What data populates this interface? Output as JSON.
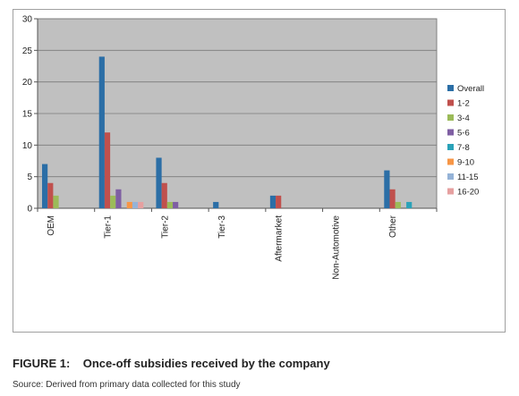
{
  "chart_data": {
    "type": "bar",
    "categories": [
      "OEM",
      "Tier-1",
      "Tier-2",
      "Tier-3",
      "Aftermarket",
      "Non-Automotive",
      "Other"
    ],
    "ylim": [
      0,
      30
    ],
    "yticks": [
      0,
      5,
      10,
      15,
      20,
      25,
      30
    ],
    "grid": true,
    "legend_position": "right",
    "series": [
      {
        "name": "Overall",
        "color": "#2b6ea6",
        "values": [
          7,
          24,
          8,
          1,
          2,
          0,
          6
        ]
      },
      {
        "name": "1-2",
        "color": "#c0504d",
        "values": [
          4,
          12,
          4,
          0,
          2,
          0,
          3
        ]
      },
      {
        "name": "3-4",
        "color": "#9bbb59",
        "values": [
          2,
          2,
          1,
          0,
          0,
          0,
          1
        ]
      },
      {
        "name": "5-6",
        "color": "#7f5fa3",
        "values": [
          0,
          3,
          1,
          0,
          0,
          0,
          0
        ]
      },
      {
        "name": "7-8",
        "color": "#2aa2b8",
        "values": [
          0,
          0,
          0,
          0,
          0,
          0,
          1
        ]
      },
      {
        "name": "9-10",
        "color": "#f79646",
        "values": [
          0,
          1,
          0,
          0,
          0,
          0,
          0
        ]
      },
      {
        "name": "11-15",
        "color": "#95b3d7",
        "values": [
          0,
          1,
          0,
          0,
          0,
          0,
          0
        ]
      },
      {
        "name": "16-20",
        "color": "#e6a0a0",
        "values": [
          0,
          1,
          0,
          0,
          0,
          0,
          0
        ]
      }
    ]
  },
  "caption": {
    "title": "FIGURE 1:    Once-off subsidies received by the company",
    "source": "Source: Derived from primary data collected for this study"
  }
}
